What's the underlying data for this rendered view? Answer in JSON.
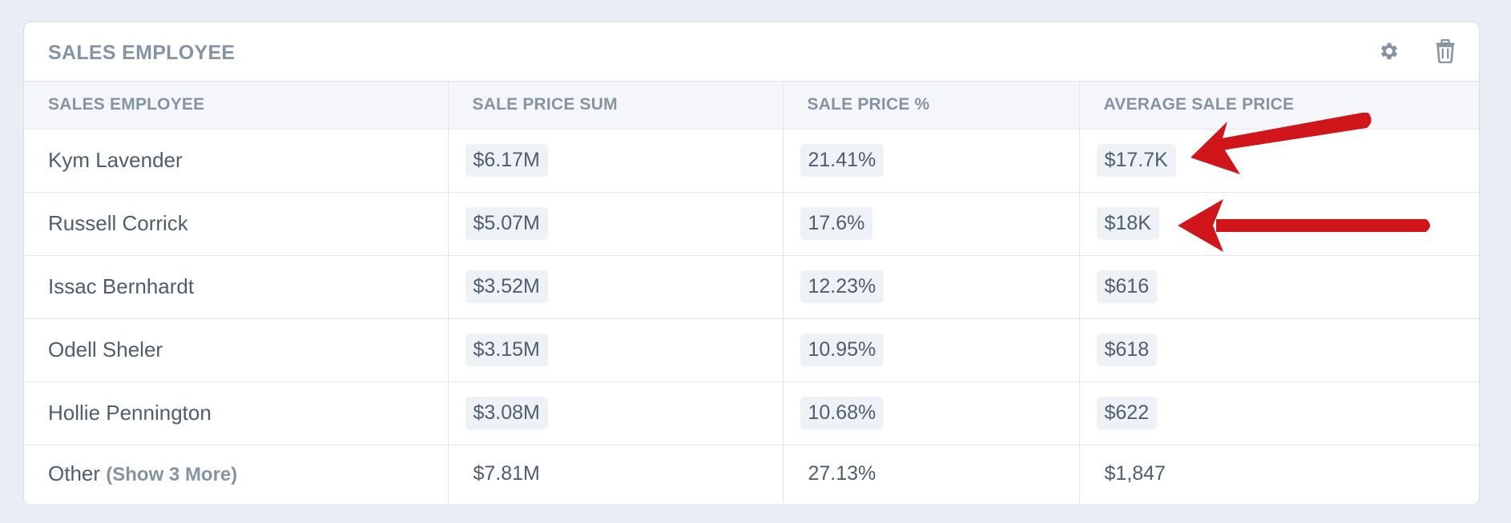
{
  "panel": {
    "title": "SALES EMPLOYEE",
    "settings_icon": "gear-icon",
    "delete_icon": "trash-icon"
  },
  "table": {
    "headers": [
      "SALES EMPLOYEE",
      "SALE PRICE SUM",
      "SALE PRICE %",
      "AVERAGE SALE PRICE"
    ],
    "rows": [
      {
        "name": "Kym Lavender",
        "sum": "$6.17M",
        "pct": "21.41%",
        "avg": "$17.7K"
      },
      {
        "name": "Russell Corrick",
        "sum": "$5.07M",
        "pct": "17.6%",
        "avg": "$18K"
      },
      {
        "name": "Issac Bernhardt",
        "sum": "$3.52M",
        "pct": "12.23%",
        "avg": "$616"
      },
      {
        "name": "Odell Sheler",
        "sum": "$3.15M",
        "pct": "10.95%",
        "avg": "$618"
      },
      {
        "name": "Hollie Pennington",
        "sum": "$3.08M",
        "pct": "10.68%",
        "avg": "$622"
      }
    ],
    "other": {
      "label": "Other",
      "show_more": "(Show 3 More)",
      "sum": "$7.81M",
      "pct": "27.13%",
      "avg": "$1,847"
    }
  },
  "annotation": {
    "arrow_color": "#d0161b"
  }
}
